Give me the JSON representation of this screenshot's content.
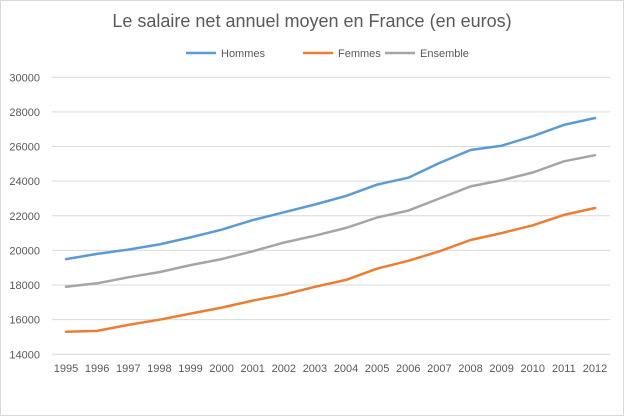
{
  "chart_data": {
    "type": "line",
    "title": "Le salaire net annuel moyen en France (en euros)",
    "xlabel": "",
    "ylabel": "",
    "ylim": [
      14000,
      30000
    ],
    "yticks": [
      14000,
      16000,
      18000,
      20000,
      22000,
      24000,
      26000,
      28000,
      30000
    ],
    "grid": true,
    "legend_position": "top",
    "categories": [
      "1995",
      "1996",
      "1997",
      "1998",
      "1999",
      "2000",
      "2001",
      "2002",
      "2003",
      "2004",
      "2005",
      "2006",
      "2007",
      "2008",
      "2009",
      "2010",
      "2011",
      "2012"
    ],
    "series": [
      {
        "name": "Hommes",
        "color": "#5B9BD5",
        "values": [
          19500,
          19800,
          20050,
          20350,
          20750,
          21200,
          21750,
          22200,
          22650,
          23150,
          23800,
          24200,
          25050,
          25800,
          26050,
          26600,
          27250,
          27650
        ]
      },
      {
        "name": "Femmes",
        "color": "#ED7D31",
        "values": [
          15300,
          15350,
          15700,
          16000,
          16350,
          16700,
          17100,
          17450,
          17900,
          18300,
          18950,
          19400,
          19950,
          20600,
          21000,
          21450,
          22050,
          22450
        ]
      },
      {
        "name": "Ensemble",
        "color": "#A5A5A5",
        "values": [
          17900,
          18100,
          18450,
          18750,
          19150,
          19500,
          19950,
          20450,
          20850,
          21300,
          21900,
          22300,
          23000,
          23700,
          24050,
          24500,
          25150,
          25500
        ]
      }
    ]
  }
}
